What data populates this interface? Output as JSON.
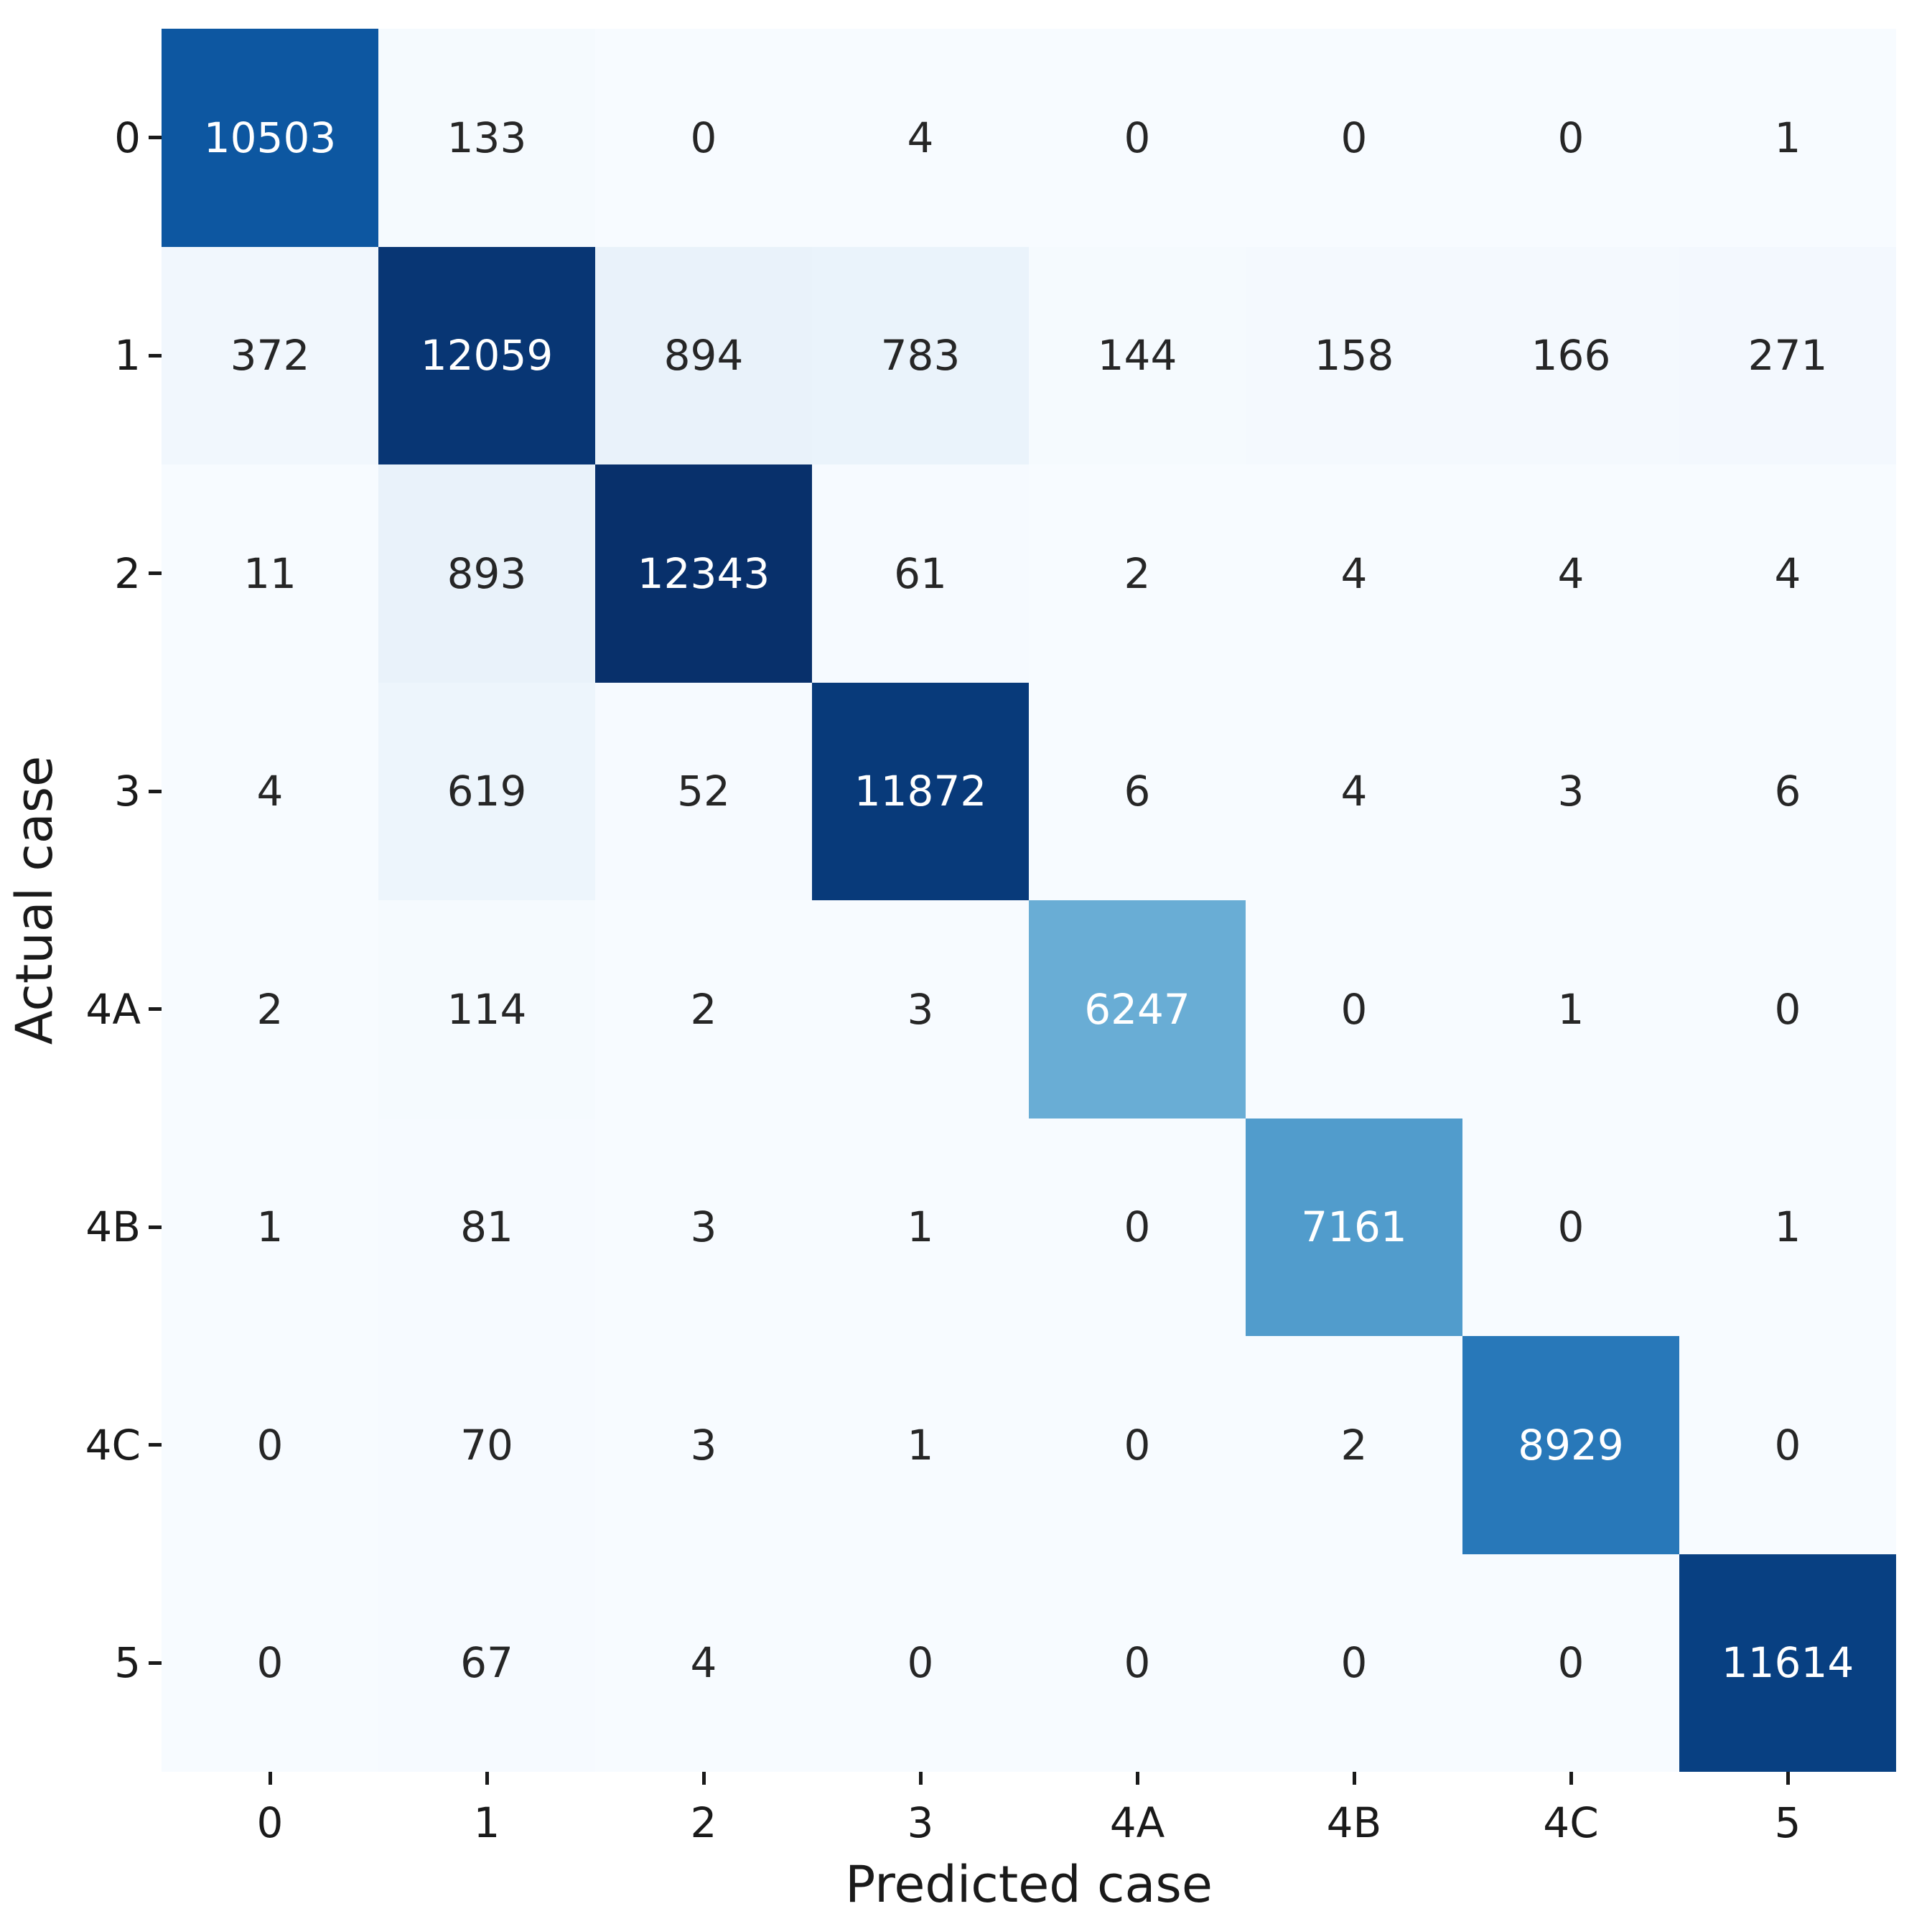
{
  "chart_data": {
    "type": "heatmap",
    "title": "",
    "xlabel": "Predicted case",
    "ylabel": "Actual case",
    "x_categories": [
      "0",
      "1",
      "2",
      "3",
      "4A",
      "4B",
      "4C",
      "5"
    ],
    "y_categories": [
      "0",
      "1",
      "2",
      "3",
      "4A",
      "4B",
      "4C",
      "5"
    ],
    "matrix": [
      [
        10503,
        133,
        0,
        4,
        0,
        0,
        0,
        1
      ],
      [
        372,
        12059,
        894,
        783,
        144,
        158,
        166,
        271
      ],
      [
        11,
        893,
        12343,
        61,
        2,
        4,
        4,
        4
      ],
      [
        4,
        619,
        52,
        11872,
        6,
        4,
        3,
        6
      ],
      [
        2,
        114,
        2,
        3,
        6247,
        0,
        1,
        0
      ],
      [
        1,
        81,
        3,
        1,
        0,
        7161,
        0,
        1
      ],
      [
        0,
        70,
        3,
        1,
        0,
        2,
        8929,
        0
      ],
      [
        0,
        67,
        4,
        0,
        0,
        0,
        0,
        11614
      ]
    ],
    "vmin": 0,
    "vmax": 12343,
    "colormap": "Blues",
    "colormap_stops": [
      "#f7fbff",
      "#deebf7",
      "#c6dbef",
      "#9ecae1",
      "#6baed6",
      "#4292c6",
      "#2171b5",
      "#08519c",
      "#08306b"
    ],
    "annotation_color_dark": "#262626",
    "annotation_color_light": "#ffffff",
    "axis_text_color": "#1a1a1a",
    "background_color": "#ffffff",
    "legend": "none",
    "grid": false
  }
}
